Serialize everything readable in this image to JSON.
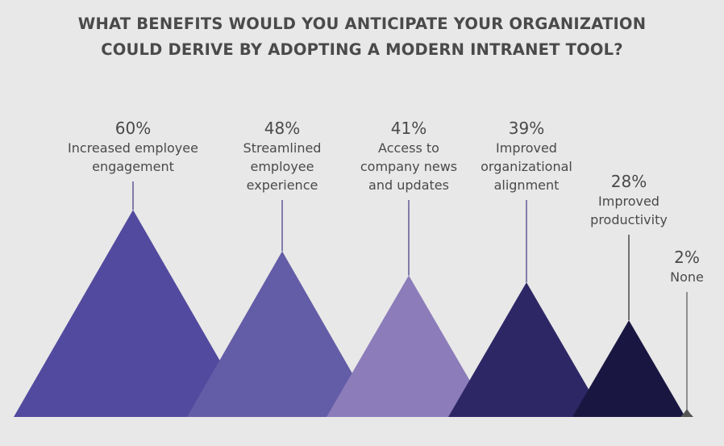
{
  "title_lines": [
    "WHAT BENEFITS WOULD YOU ANTICIPATE YOUR ORGANIZATION",
    "COULD DERIVE BY ADOPTING A MODERN INTRANET TOOL?"
  ],
  "chart_data": {
    "type": "bar",
    "title": "WHAT BENEFITS WOULD YOU ANTICIPATE YOUR ORGANIZATION COULD DERIVE BY ADOPTING A MODERN INTRANET TOOL?",
    "unit": "%",
    "series": [
      {
        "values": [
          60,
          48,
          41,
          39,
          28,
          2
        ]
      }
    ],
    "categories": [
      "Increased employee engagement",
      "Streamlined employee experience",
      "Access to company news and updates",
      "Improved organizational alignment",
      "Improved productivity",
      "None"
    ],
    "value_labels": [
      "60%",
      "48%",
      "41%",
      "39%",
      "28%",
      "2%"
    ],
    "label_lines": [
      [
        "Increased employee",
        "engagement"
      ],
      [
        "Streamlined",
        "employee",
        "experience"
      ],
      [
        "Access to",
        "company news",
        "and updates"
      ],
      [
        "Improved",
        "organizational",
        "alignment"
      ],
      [
        "Improved",
        "productivity"
      ],
      [
        "None"
      ]
    ],
    "colors": [
      "#524a9e",
      "#635ca6",
      "#8c7cba",
      "#2e2766",
      "#191641",
      "#555555"
    ]
  }
}
